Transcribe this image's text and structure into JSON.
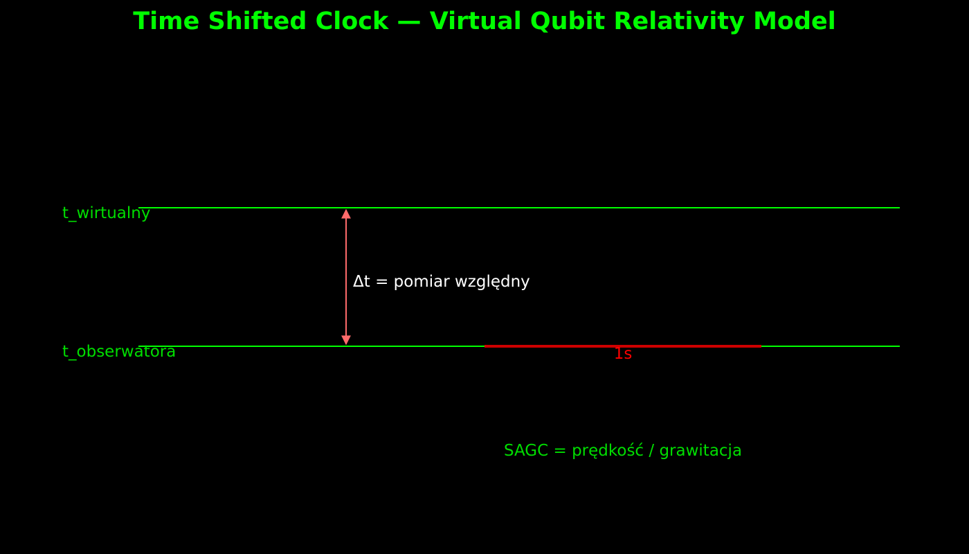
{
  "title": "Time Shifted Clock — Virtual Qubit Relativity Model",
  "timelines": {
    "virtual_label": "t_wirtualny",
    "observer_label": "t_obserwatora"
  },
  "delta": {
    "label": "Δt = pomiar względny"
  },
  "unit_segment": {
    "label": "1s"
  },
  "formula": "SAGC = prędkość / grawitacja",
  "colors": {
    "background": "#000000",
    "title": "#00ff00",
    "timeline": "#00ff00",
    "labels": "#00dd00",
    "delta_arrow": "#ff6b6b",
    "delta_text": "#ffffff",
    "unit_segment": "#cc0000",
    "unit_text": "#ff0000"
  }
}
